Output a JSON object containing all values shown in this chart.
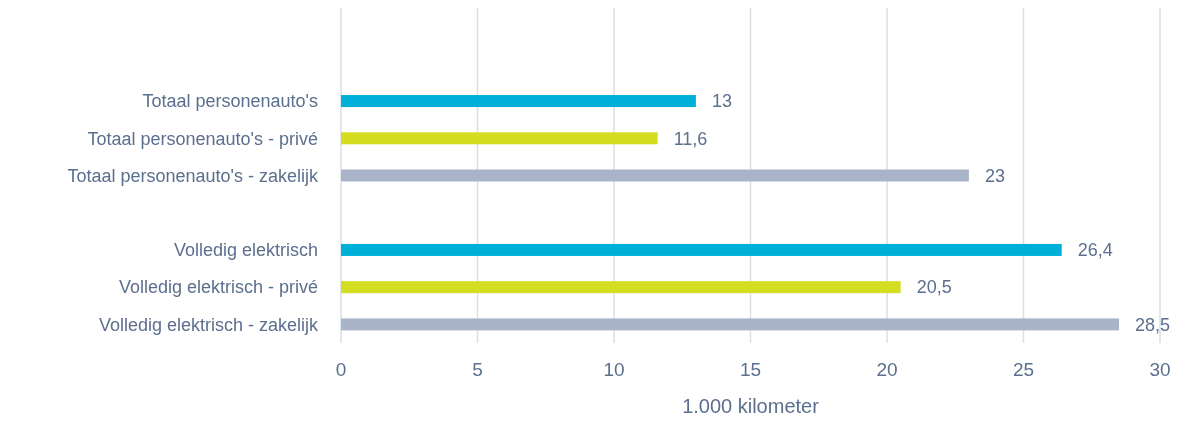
{
  "chart_data": {
    "type": "bar",
    "orientation": "horizontal",
    "xlabel": "1.000 kilometer",
    "categories": [
      null,
      null,
      "Totaal personenauto's",
      "Totaal personenauto's - privé",
      "Totaal personenauto's - zakelijk",
      null,
      "Volledig elektrisch",
      "Volledig elektrisch - privé",
      "Volledig elektrisch - zakelijk"
    ],
    "values": [
      null,
      null,
      13,
      11.6,
      23,
      null,
      26.4,
      20.5,
      28.5
    ],
    "value_labels": [
      null,
      null,
      "13",
      "11,6",
      "23",
      null,
      "26,4",
      "20,5",
      "28,5"
    ],
    "colors": [
      null,
      null,
      "#00b0d8",
      "#d4dd22",
      "#aab4c8",
      null,
      "#00b0d8",
      "#d4dd22",
      "#aab4c8"
    ],
    "xlim": [
      0,
      30
    ],
    "xticks": [
      0,
      5,
      10,
      15,
      20,
      25,
      30
    ],
    "grid": "x"
  }
}
